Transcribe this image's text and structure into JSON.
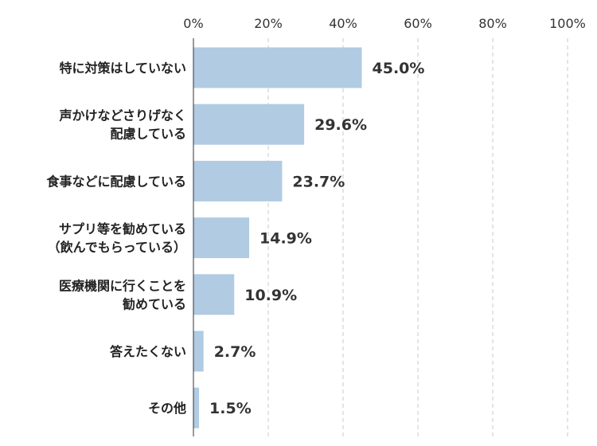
{
  "chart_data": {
    "type": "bar",
    "orientation": "horizontal",
    "categories": [
      [
        "特に対策はしていない"
      ],
      [
        "声かけなどさりげなく",
        "配慮している"
      ],
      [
        "食事などに配慮している"
      ],
      [
        "サプリ等を勧めている",
        "（飲んでもらっている）"
      ],
      [
        "医療機関に行くことを",
        "勧めている"
      ],
      [
        "答えたくない"
      ],
      [
        "その他"
      ]
    ],
    "values": [
      45.0,
      29.6,
      23.7,
      14.9,
      10.9,
      2.7,
      1.5
    ],
    "value_labels": [
      "45.0%",
      "29.6%",
      "23.7%",
      "14.9%",
      "10.9%",
      "2.7%",
      "1.5%"
    ],
    "xlim": [
      0,
      100
    ],
    "x_ticks": [
      0,
      20,
      40,
      60,
      80,
      100
    ],
    "x_tick_labels": [
      "0%",
      "20%",
      "40%",
      "60%",
      "80%",
      "100%"
    ],
    "axis_position": "top",
    "grid": true,
    "bar_color": "#b0cbe2"
  }
}
